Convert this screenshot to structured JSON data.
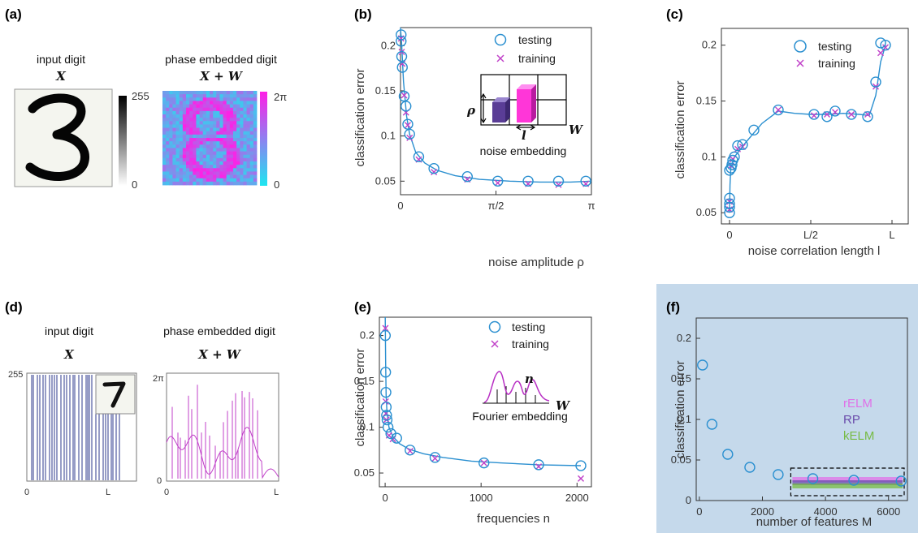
{
  "panel_labels": [
    "(a)",
    "(b)",
    "(c)",
    "(d)",
    "(e)",
    "(f)"
  ],
  "colors": {
    "fit_line": "#2a8fd0",
    "testing": "#2a8fd0",
    "training": "#c040c8",
    "phase_low": "#1de6f0",
    "phase_high": "#ff1fe6",
    "panel_f_bg": "#c5d9eb",
    "rELM": "#e070e8",
    "RP": "#6a4cab",
    "kELM": "#77bb44",
    "digit_bars": "#2c3a8e"
  },
  "panel_a": {
    "input_title": "input digit",
    "input_math": "X",
    "phase_title": "phase embedded digit",
    "phase_math": "X + W",
    "cbar1_top": "255",
    "cbar1_bottom": "0",
    "cbar2_top": "2π",
    "cbar2_bottom": "0"
  },
  "panel_d": {
    "input_title": "input digit",
    "input_math": "X",
    "phase_title": "phase embedded digit",
    "phase_math": "X + W",
    "left_y_top": "255",
    "left_x_left": "0",
    "left_x_right": "L",
    "right_y_top": "2π",
    "right_y_bottom": "0",
    "right_x_left": "0",
    "right_x_right": "L"
  },
  "chart_data": [
    {
      "panel": "b",
      "type": "scatter",
      "xlabel": "noise amplitude ρ",
      "ylabel": "classification error",
      "xlim": [
        0,
        3.1416
      ],
      "ylim": [
        0.035,
        0.22
      ],
      "xticks": [
        {
          "v": 0,
          "label": "0"
        },
        {
          "v": 1.5708,
          "label": "π/2"
        },
        {
          "v": 3.1416,
          "label": "π"
        }
      ],
      "yticks": [
        0.05,
        0.1,
        0.15,
        0.2
      ],
      "legend": [
        "testing",
        "training"
      ],
      "legend_position": "top-right",
      "inset_labels": {
        "rho": "ρ",
        "l": "l",
        "W": "W",
        "caption": "noise embedding"
      },
      "testing": [
        [
          0.01,
          0.212
        ],
        [
          0.01,
          0.205
        ],
        [
          0.02,
          0.188
        ],
        [
          0.03,
          0.176
        ],
        [
          0.06,
          0.144
        ],
        [
          0.09,
          0.133
        ],
        [
          0.12,
          0.113
        ],
        [
          0.15,
          0.102
        ],
        [
          0.3,
          0.077
        ],
        [
          0.55,
          0.064
        ],
        [
          1.1,
          0.055
        ],
        [
          1.6,
          0.05
        ],
        [
          2.1,
          0.05
        ],
        [
          2.6,
          0.05
        ],
        [
          3.05,
          0.05
        ]
      ],
      "training": [
        [
          0.01,
          0.208
        ],
        [
          0.02,
          0.193
        ],
        [
          0.03,
          0.18
        ],
        [
          0.06,
          0.145
        ],
        [
          0.09,
          0.126
        ],
        [
          0.12,
          0.112
        ],
        [
          0.15,
          0.098
        ],
        [
          0.3,
          0.074
        ],
        [
          0.55,
          0.06
        ],
        [
          1.1,
          0.052
        ],
        [
          1.6,
          0.048
        ],
        [
          2.1,
          0.047
        ],
        [
          2.6,
          0.046
        ],
        [
          3.05,
          0.047
        ]
      ],
      "fit": [
        [
          0,
          0.22
        ],
        [
          0.02,
          0.2
        ],
        [
          0.05,
          0.16
        ],
        [
          0.1,
          0.122
        ],
        [
          0.15,
          0.102
        ],
        [
          0.25,
          0.082
        ],
        [
          0.4,
          0.07
        ],
        [
          0.6,
          0.062
        ],
        [
          0.9,
          0.056
        ],
        [
          1.3,
          0.052
        ],
        [
          1.8,
          0.05
        ],
        [
          2.3,
          0.049
        ],
        [
          2.8,
          0.049
        ],
        [
          3.14,
          0.05
        ]
      ]
    },
    {
      "panel": "c",
      "type": "scatter",
      "xlabel": "noise correlation length l",
      "ylabel": "classification error",
      "xlim": [
        -0.05,
        1.1
      ],
      "ylim": [
        0.04,
        0.215
      ],
      "xticks": [
        {
          "v": 0,
          "label": "0"
        },
        {
          "v": 0.5,
          "label": "L/2"
        },
        {
          "v": 1,
          "label": "L"
        }
      ],
      "yticks": [
        0.05,
        0.1,
        0.15,
        0.2
      ],
      "legend": [
        "testing",
        "training"
      ],
      "legend_position": "top-right",
      "testing": [
        [
          0,
          0.05
        ],
        [
          0,
          0.055
        ],
        [
          0,
          0.058
        ],
        [
          0,
          0.063
        ],
        [
          0,
          0.088
        ],
        [
          0.01,
          0.09
        ],
        [
          0.015,
          0.093
        ],
        [
          0.02,
          0.097
        ],
        [
          0.03,
          0.1
        ],
        [
          0.05,
          0.11
        ],
        [
          0.08,
          0.111
        ],
        [
          0.15,
          0.124
        ],
        [
          0.3,
          0.142
        ],
        [
          0.52,
          0.138
        ],
        [
          0.6,
          0.136
        ],
        [
          0.65,
          0.141
        ],
        [
          0.75,
          0.138
        ],
        [
          0.85,
          0.136
        ],
        [
          0.9,
          0.167
        ],
        [
          0.93,
          0.202
        ],
        [
          0.96,
          0.2
        ]
      ],
      "training": [
        [
          0,
          0.053
        ],
        [
          0,
          0.06
        ],
        [
          0.01,
          0.092
        ],
        [
          0.02,
          0.098
        ],
        [
          0.05,
          0.107
        ],
        [
          0.08,
          0.109
        ],
        [
          0.3,
          0.142
        ],
        [
          0.52,
          0.137
        ],
        [
          0.6,
          0.138
        ],
        [
          0.65,
          0.14
        ],
        [
          0.75,
          0.138
        ],
        [
          0.85,
          0.138
        ],
        [
          0.9,
          0.163
        ],
        [
          0.93,
          0.193
        ],
        [
          0.96,
          0.198
        ]
      ],
      "fit": [
        [
          0,
          0.05
        ],
        [
          0.003,
          0.075
        ],
        [
          0.008,
          0.09
        ],
        [
          0.03,
          0.1
        ],
        [
          0.1,
          0.113
        ],
        [
          0.2,
          0.13
        ],
        [
          0.3,
          0.141
        ],
        [
          0.4,
          0.139
        ],
        [
          0.5,
          0.138
        ],
        [
          0.6,
          0.138
        ],
        [
          0.7,
          0.139
        ],
        [
          0.8,
          0.138
        ],
        [
          0.86,
          0.137
        ],
        [
          0.9,
          0.155
        ],
        [
          0.93,
          0.185
        ],
        [
          0.96,
          0.2
        ]
      ]
    },
    {
      "panel": "e",
      "type": "scatter",
      "xlabel": "frequencies n",
      "ylabel": "classification error",
      "xlim": [
        -60,
        2150
      ],
      "ylim": [
        0.035,
        0.22
      ],
      "xticks": [
        {
          "v": 0,
          "label": "0"
        },
        {
          "v": 1000,
          "label": "1000"
        },
        {
          "v": 2000,
          "label": "2000"
        }
      ],
      "yticks": [
        0.05,
        0.1,
        0.15,
        0.2
      ],
      "legend": [
        "testing",
        "training"
      ],
      "legend_position": "top-right",
      "inset_labels": {
        "n": "n",
        "W": "W",
        "caption": "Fourier embedding"
      },
      "testing": [
        [
          2,
          0.2
        ],
        [
          5,
          0.16
        ],
        [
          8,
          0.138
        ],
        [
          11,
          0.122
        ],
        [
          15,
          0.113
        ],
        [
          20,
          0.108
        ],
        [
          30,
          0.1
        ],
        [
          60,
          0.093
        ],
        [
          120,
          0.088
        ],
        [
          260,
          0.075
        ],
        [
          520,
          0.067
        ],
        [
          1030,
          0.061
        ],
        [
          1600,
          0.059
        ],
        [
          2040,
          0.058
        ]
      ],
      "training": [
        [
          3,
          0.208
        ],
        [
          6,
          0.128
        ],
        [
          9,
          0.115
        ],
        [
          14,
          0.108
        ],
        [
          40,
          0.091
        ],
        [
          80,
          0.087
        ],
        [
          260,
          0.074
        ],
        [
          520,
          0.066
        ],
        [
          1030,
          0.061
        ],
        [
          1600,
          0.057
        ],
        [
          2040,
          0.044
        ]
      ],
      "fit": [
        [
          1,
          0.22
        ],
        [
          5,
          0.17
        ],
        [
          10,
          0.135
        ],
        [
          20,
          0.115
        ],
        [
          40,
          0.1
        ],
        [
          80,
          0.09
        ],
        [
          150,
          0.082
        ],
        [
          250,
          0.076
        ],
        [
          400,
          0.071
        ],
        [
          600,
          0.067
        ],
        [
          900,
          0.063
        ],
        [
          1200,
          0.061
        ],
        [
          1600,
          0.059
        ],
        [
          2040,
          0.058
        ]
      ]
    },
    {
      "panel": "f",
      "type": "scatter",
      "xlabel": "number of features M",
      "ylabel": "classification error",
      "xlim": [
        -100,
        6600
      ],
      "ylim": [
        0,
        0.225
      ],
      "xticks": [
        {
          "v": 0,
          "label": "0"
        },
        {
          "v": 2000,
          "label": "2000"
        },
        {
          "v": 4000,
          "label": "4000"
        },
        {
          "v": 6000,
          "label": "6000"
        }
      ],
      "yticks": [
        {
          "v": 0,
          "label": "0"
        },
        {
          "v": 0.05,
          "label": "0.05"
        },
        {
          "v": 0.1,
          "label": "0.1"
        },
        {
          "v": 0.15,
          "label": "0.15"
        },
        {
          "v": 0.2,
          "label": "0.2"
        }
      ],
      "legend": [
        "rELM",
        "RP",
        "kELM"
      ],
      "legend_position": "right",
      "testing": [
        [
          100,
          0.167
        ],
        [
          400,
          0.094
        ],
        [
          900,
          0.057
        ],
        [
          1600,
          0.041
        ],
        [
          2500,
          0.032
        ],
        [
          3600,
          0.027
        ],
        [
          4900,
          0.025
        ],
        [
          6400,
          0.024
        ]
      ],
      "bands": [
        {
          "name": "rELM",
          "y": 0.026
        },
        {
          "name": "RP",
          "y": 0.022
        },
        {
          "name": "kELM",
          "y": 0.018
        }
      ],
      "band_x": [
        2900,
        6600
      ]
    }
  ]
}
